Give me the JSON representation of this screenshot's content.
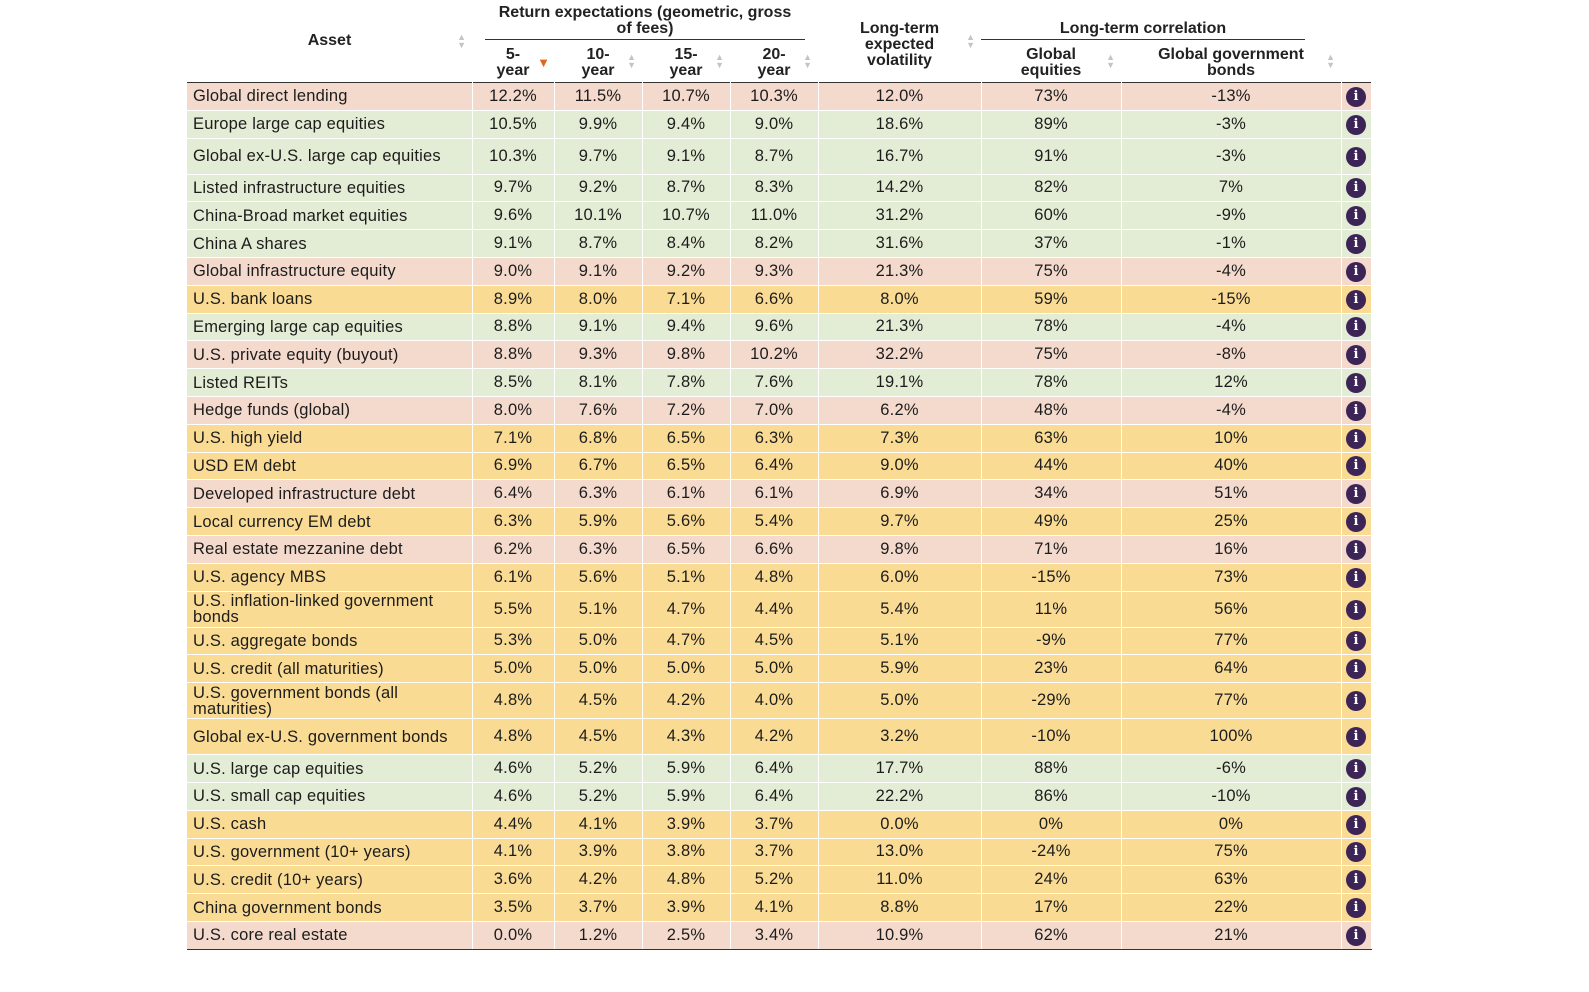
{
  "header": {
    "asset": "Asset",
    "return_group": "Return expectations (geometric, gross of fees)",
    "y5": "5-year",
    "y10": "10-year",
    "y15": "15-year",
    "y20": "20-year",
    "volatility": "Long-term expected volatility",
    "corr_group": "Long-term correlation",
    "corr_eq": "Global equities",
    "corr_bonds": "Global government bonds"
  },
  "sort": {
    "column": "5-year",
    "direction": "descending"
  },
  "colors": {
    "pink": "#f4d9cd",
    "green": "#e3ecd4",
    "yellow": "#fadb93",
    "info_icon": "#3c2556",
    "sort_arrow": "#e2661a"
  },
  "icons": {
    "info": "info-icon",
    "sort": "sort-icon",
    "sort_active": "sort-desc-arrow-icon"
  },
  "rows": [
    {
      "asset": "Global direct lending",
      "y5": "12.2%",
      "y10": "11.5%",
      "y15": "10.7%",
      "y20": "10.3%",
      "vol": "12.0%",
      "eq": "73%",
      "bonds": "-13%",
      "bg": "pink"
    },
    {
      "asset": "Europe large cap equities",
      "y5": "10.5%",
      "y10": "9.9%",
      "y15": "9.4%",
      "y20": "9.0%",
      "vol": "18.6%",
      "eq": "89%",
      "bonds": "-3%",
      "bg": "green"
    },
    {
      "asset": "Global ex-U.S. large cap equities",
      "y5": "10.3%",
      "y10": "9.7%",
      "y15": "9.1%",
      "y20": "8.7%",
      "vol": "16.7%",
      "eq": "91%",
      "bonds": "-3%",
      "bg": "green"
    },
    {
      "asset": "Listed infrastructure equities",
      "y5": "9.7%",
      "y10": "9.2%",
      "y15": "8.7%",
      "y20": "8.3%",
      "vol": "14.2%",
      "eq": "82%",
      "bonds": "7%",
      "bg": "green"
    },
    {
      "asset": "China-Broad market equities",
      "y5": "9.6%",
      "y10": "10.1%",
      "y15": "10.7%",
      "y20": "11.0%",
      "vol": "31.2%",
      "eq": "60%",
      "bonds": "-9%",
      "bg": "green"
    },
    {
      "asset": "China A shares",
      "y5": "9.1%",
      "y10": "8.7%",
      "y15": "8.4%",
      "y20": "8.2%",
      "vol": "31.6%",
      "eq": "37%",
      "bonds": "-1%",
      "bg": "green"
    },
    {
      "asset": "Global infrastructure equity",
      "y5": "9.0%",
      "y10": "9.1%",
      "y15": "9.2%",
      "y20": "9.3%",
      "vol": "21.3%",
      "eq": "75%",
      "bonds": "-4%",
      "bg": "pink"
    },
    {
      "asset": "U.S. bank loans",
      "y5": "8.9%",
      "y10": "8.0%",
      "y15": "7.1%",
      "y20": "6.6%",
      "vol": "8.0%",
      "eq": "59%",
      "bonds": "-15%",
      "bg": "yellow"
    },
    {
      "asset": "Emerging large cap equities",
      "y5": "8.8%",
      "y10": "9.1%",
      "y15": "9.4%",
      "y20": "9.6%",
      "vol": "21.3%",
      "eq": "78%",
      "bonds": "-4%",
      "bg": "green"
    },
    {
      "asset": "U.S. private equity (buyout)",
      "y5": "8.8%",
      "y10": "9.3%",
      "y15": "9.8%",
      "y20": "10.2%",
      "vol": "32.2%",
      "eq": "75%",
      "bonds": "-8%",
      "bg": "pink"
    },
    {
      "asset": "Listed REITs",
      "y5": "8.5%",
      "y10": "8.1%",
      "y15": "7.8%",
      "y20": "7.6%",
      "vol": "19.1%",
      "eq": "78%",
      "bonds": "12%",
      "bg": "green"
    },
    {
      "asset": "Hedge funds (global)",
      "y5": "8.0%",
      "y10": "7.6%",
      "y15": "7.2%",
      "y20": "7.0%",
      "vol": "6.2%",
      "eq": "48%",
      "bonds": "-4%",
      "bg": "pink"
    },
    {
      "asset": "U.S. high yield",
      "y5": "7.1%",
      "y10": "6.8%",
      "y15": "6.5%",
      "y20": "6.3%",
      "vol": "7.3%",
      "eq": "63%",
      "bonds": "10%",
      "bg": "yellow"
    },
    {
      "asset": "USD EM debt",
      "y5": "6.9%",
      "y10": "6.7%",
      "y15": "6.5%",
      "y20": "6.4%",
      "vol": "9.0%",
      "eq": "44%",
      "bonds": "40%",
      "bg": "yellow"
    },
    {
      "asset": "Developed infrastructure debt",
      "y5": "6.4%",
      "y10": "6.3%",
      "y15": "6.1%",
      "y20": "6.1%",
      "vol": "6.9%",
      "eq": "34%",
      "bonds": "51%",
      "bg": "pink"
    },
    {
      "asset": "Local currency EM debt",
      "y5": "6.3%",
      "y10": "5.9%",
      "y15": "5.6%",
      "y20": "5.4%",
      "vol": "9.7%",
      "eq": "49%",
      "bonds": "25%",
      "bg": "yellow"
    },
    {
      "asset": "Real estate mezzanine debt",
      "y5": "6.2%",
      "y10": "6.3%",
      "y15": "6.5%",
      "y20": "6.6%",
      "vol": "9.8%",
      "eq": "71%",
      "bonds": "16%",
      "bg": "pink"
    },
    {
      "asset": "U.S. agency MBS",
      "y5": "6.1%",
      "y10": "5.6%",
      "y15": "5.1%",
      "y20": "4.8%",
      "vol": "6.0%",
      "eq": "-15%",
      "bonds": "73%",
      "bg": "yellow"
    },
    {
      "asset": "U.S. inflation-linked government bonds",
      "y5": "5.5%",
      "y10": "5.1%",
      "y15": "4.7%",
      "y20": "4.4%",
      "vol": "5.4%",
      "eq": "11%",
      "bonds": "56%",
      "bg": "yellow"
    },
    {
      "asset": "U.S. aggregate bonds",
      "y5": "5.3%",
      "y10": "5.0%",
      "y15": "4.7%",
      "y20": "4.5%",
      "vol": "5.1%",
      "eq": "-9%",
      "bonds": "77%",
      "bg": "yellow"
    },
    {
      "asset": "U.S. credit (all maturities)",
      "y5": "5.0%",
      "y10": "5.0%",
      "y15": "5.0%",
      "y20": "5.0%",
      "vol": "5.9%",
      "eq": "23%",
      "bonds": "64%",
      "bg": "yellow"
    },
    {
      "asset": "U.S. government bonds (all maturities)",
      "y5": "4.8%",
      "y10": "4.5%",
      "y15": "4.2%",
      "y20": "4.0%",
      "vol": "5.0%",
      "eq": "-29%",
      "bonds": "77%",
      "bg": "yellow"
    },
    {
      "asset": "Global ex-U.S. government bonds",
      "y5": "4.8%",
      "y10": "4.5%",
      "y15": "4.3%",
      "y20": "4.2%",
      "vol": "3.2%",
      "eq": "-10%",
      "bonds": "100%",
      "bg": "yellow"
    },
    {
      "asset": "U.S. large cap equities",
      "y5": "4.6%",
      "y10": "5.2%",
      "y15": "5.9%",
      "y20": "6.4%",
      "vol": "17.7%",
      "eq": "88%",
      "bonds": "-6%",
      "bg": "green"
    },
    {
      "asset": "U.S. small cap equities",
      "y5": "4.6%",
      "y10": "5.2%",
      "y15": "5.9%",
      "y20": "6.4%",
      "vol": "22.2%",
      "eq": "86%",
      "bonds": "-10%",
      "bg": "green"
    },
    {
      "asset": "U.S. cash",
      "y5": "4.4%",
      "y10": "4.1%",
      "y15": "3.9%",
      "y20": "3.7%",
      "vol": "0.0%",
      "eq": "0%",
      "bonds": "0%",
      "bg": "yellow"
    },
    {
      "asset": "U.S. government (10+ years)",
      "y5": "4.1%",
      "y10": "3.9%",
      "y15": "3.8%",
      "y20": "3.7%",
      "vol": "13.0%",
      "eq": "-24%",
      "bonds": "75%",
      "bg": "yellow"
    },
    {
      "asset": "U.S. credit (10+ years)",
      "y5": "3.6%",
      "y10": "4.2%",
      "y15": "4.8%",
      "y20": "5.2%",
      "vol": "11.0%",
      "eq": "24%",
      "bonds": "63%",
      "bg": "yellow"
    },
    {
      "asset": "China government bonds",
      "y5": "3.5%",
      "y10": "3.7%",
      "y15": "3.9%",
      "y20": "4.1%",
      "vol": "8.8%",
      "eq": "17%",
      "bonds": "22%",
      "bg": "yellow"
    },
    {
      "asset": "U.S. core real estate",
      "y5": "0.0%",
      "y10": "1.2%",
      "y15": "2.5%",
      "y20": "3.4%",
      "vol": "10.9%",
      "eq": "62%",
      "bonds": "21%",
      "bg": "pink"
    }
  ]
}
